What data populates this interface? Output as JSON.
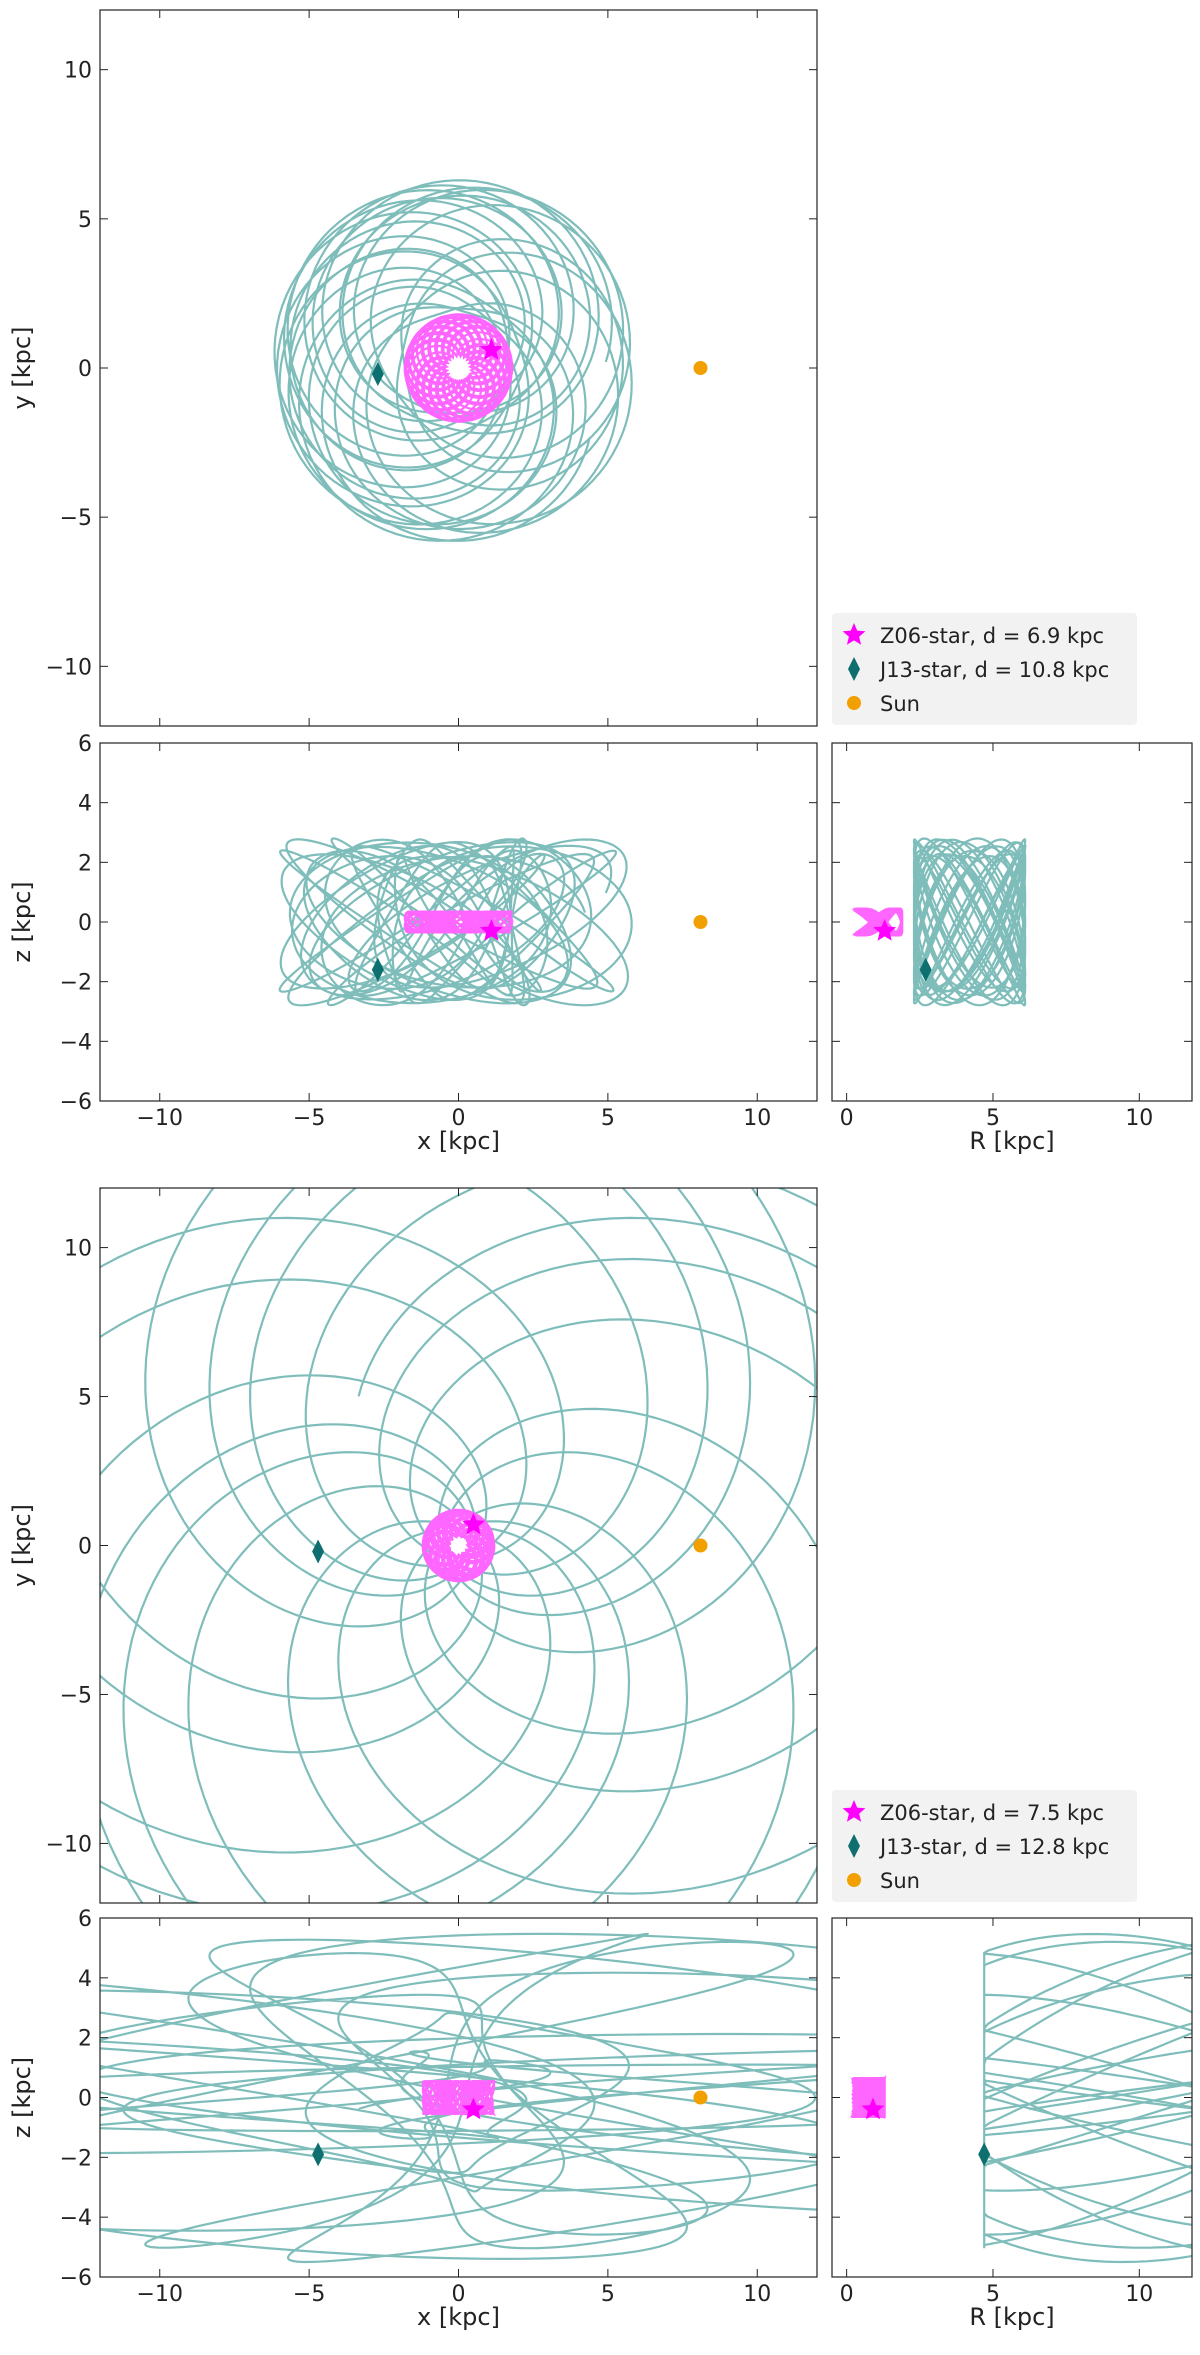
{
  "figure": {
    "colors": {
      "orbit_j13": "#7fbdbb",
      "orbit_z06": "#ff66ff",
      "z06_marker": "#ff00ff",
      "j13_marker": "#0e6f6f",
      "sun_marker": "#f2a000",
      "axis": "#222222",
      "legend_bg": "#f2f2f2"
    },
    "icons": {
      "z06": "star",
      "j13": "diamond",
      "sun": "circle"
    }
  },
  "chart_data": [
    {
      "id": "top-xy",
      "type": "scatter",
      "xlabel": "",
      "ylabel": "y [kpc]",
      "xlim": [
        -12,
        12
      ],
      "ylim": [
        -12,
        12
      ],
      "xticks": [
        -10,
        -5,
        0,
        5,
        10
      ],
      "yticks": [
        -10,
        -5,
        0,
        5,
        10
      ],
      "show_x_ticklabels": false,
      "grid": false,
      "legend_position": "lower-right-outside",
      "legend": [
        {
          "label": "Z06-star, d = 6.9 kpc",
          "marker": "star"
        },
        {
          "label": "J13-star, d = 10.8 kpc",
          "marker": "diamond"
        },
        {
          "label": "Sun",
          "marker": "circle"
        }
      ],
      "points": {
        "z06": [
          1.1,
          0.6
        ],
        "j13": [
          -2.7,
          -0.2
        ],
        "sun": [
          8.1,
          0.0
        ]
      }
    },
    {
      "id": "top-xz",
      "type": "scatter",
      "xlabel": "x [kpc]",
      "ylabel": "z [kpc]",
      "xlim": [
        -12,
        12
      ],
      "ylim": [
        -6,
        6
      ],
      "xticks": [
        -10,
        -5,
        0,
        5,
        10
      ],
      "yticks": [
        -6,
        -4,
        -2,
        0,
        2,
        4,
        6
      ],
      "grid": false,
      "points": {
        "z06": [
          1.1,
          -0.3
        ],
        "j13": [
          -2.7,
          -1.6
        ],
        "sun": [
          8.1,
          0.0
        ]
      }
    },
    {
      "id": "top-rz",
      "type": "scatter",
      "xlabel": "R [kpc]",
      "ylabel": "",
      "xlim": [
        -0.5,
        11.8
      ],
      "ylim": [
        -6,
        6
      ],
      "xticks": [
        0,
        5,
        10
      ],
      "yticks": [
        -6,
        -4,
        -2,
        0,
        2,
        4,
        6
      ],
      "grid": false,
      "points": {
        "z06": [
          1.3,
          -0.3
        ],
        "j13": [
          2.7,
          -1.6
        ]
      }
    },
    {
      "id": "bottom-xy",
      "type": "scatter",
      "xlabel": "",
      "ylabel": "y [kpc]",
      "xlim": [
        -12,
        12
      ],
      "ylim": [
        -12,
        12
      ],
      "xticks": [
        -10,
        -5,
        0,
        5,
        10
      ],
      "yticks": [
        -10,
        -5,
        0,
        5,
        10
      ],
      "show_x_ticklabels": false,
      "grid": false,
      "legend_position": "lower-right-outside",
      "legend": [
        {
          "label": "Z06-star, d = 7.5 kpc",
          "marker": "star"
        },
        {
          "label": "J13-star, d = 12.8 kpc",
          "marker": "diamond"
        },
        {
          "label": "Sun",
          "marker": "circle"
        }
      ],
      "points": {
        "z06": [
          0.5,
          0.7
        ],
        "j13": [
          -4.7,
          -0.2
        ],
        "sun": [
          8.1,
          0.0
        ]
      }
    },
    {
      "id": "bottom-xz",
      "type": "scatter",
      "xlabel": "x [kpc]",
      "ylabel": "z [kpc]",
      "xlim": [
        -12,
        12
      ],
      "ylim": [
        -6,
        6
      ],
      "xticks": [
        -10,
        -5,
        0,
        5,
        10
      ],
      "yticks": [
        -6,
        -4,
        -2,
        0,
        2,
        4,
        6
      ],
      "grid": false,
      "points": {
        "z06": [
          0.5,
          -0.4
        ],
        "j13": [
          -4.7,
          -1.9
        ],
        "sun": [
          8.1,
          0.0
        ]
      }
    },
    {
      "id": "bottom-rz",
      "type": "scatter",
      "xlabel": "R [kpc]",
      "ylabel": "",
      "xlim": [
        -0.5,
        11.8
      ],
      "ylim": [
        -6,
        6
      ],
      "xticks": [
        0,
        5,
        10
      ],
      "yticks": [
        -6,
        -4,
        -2,
        0,
        2,
        4,
        6
      ],
      "grid": false,
      "points": {
        "z06": [
          0.9,
          -0.4
        ],
        "j13": [
          4.7,
          -1.9
        ]
      }
    }
  ]
}
